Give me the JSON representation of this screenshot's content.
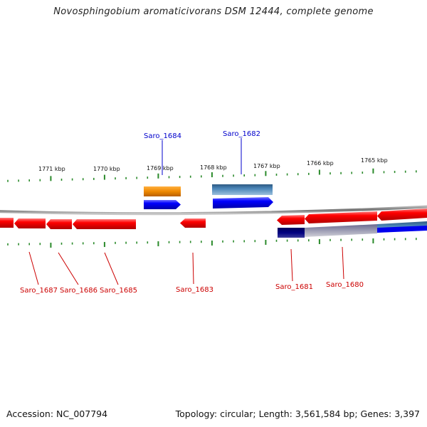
{
  "header": {
    "title": "Novosphingobium aromaticivorans DSM 12444, complete genome"
  },
  "footer": {
    "accession": "Accession: NC_007794",
    "stats": "Topology: circular; Length: 3,561,584 bp; Genes: 3,397"
  },
  "colors": {
    "forward_gene": "#0000ee",
    "reverse_gene": "#ee0000",
    "orange_feature": "#ee8800",
    "steel_feature": "#4682b4",
    "navy_feature": "#000080",
    "tick": "#2a8a2a",
    "backbone": "#8c8c8c",
    "forward_label": "#0000cc",
    "reverse_label": "#cc0000"
  },
  "ruler": {
    "labels": [
      "1771 kbp",
      "1770 kbp",
      "1769 kbp",
      "1768 kbp",
      "1767 kbp",
      "1766 kbp",
      "1765 kbp"
    ]
  },
  "genes": {
    "forward_labels": [
      "Saro_1684",
      "Saro_1682"
    ],
    "reverse_labels": [
      "Saro_1687",
      "Saro_1686",
      "Saro_1685",
      "Saro_1683",
      "Saro_1681",
      "Saro_1680"
    ]
  }
}
